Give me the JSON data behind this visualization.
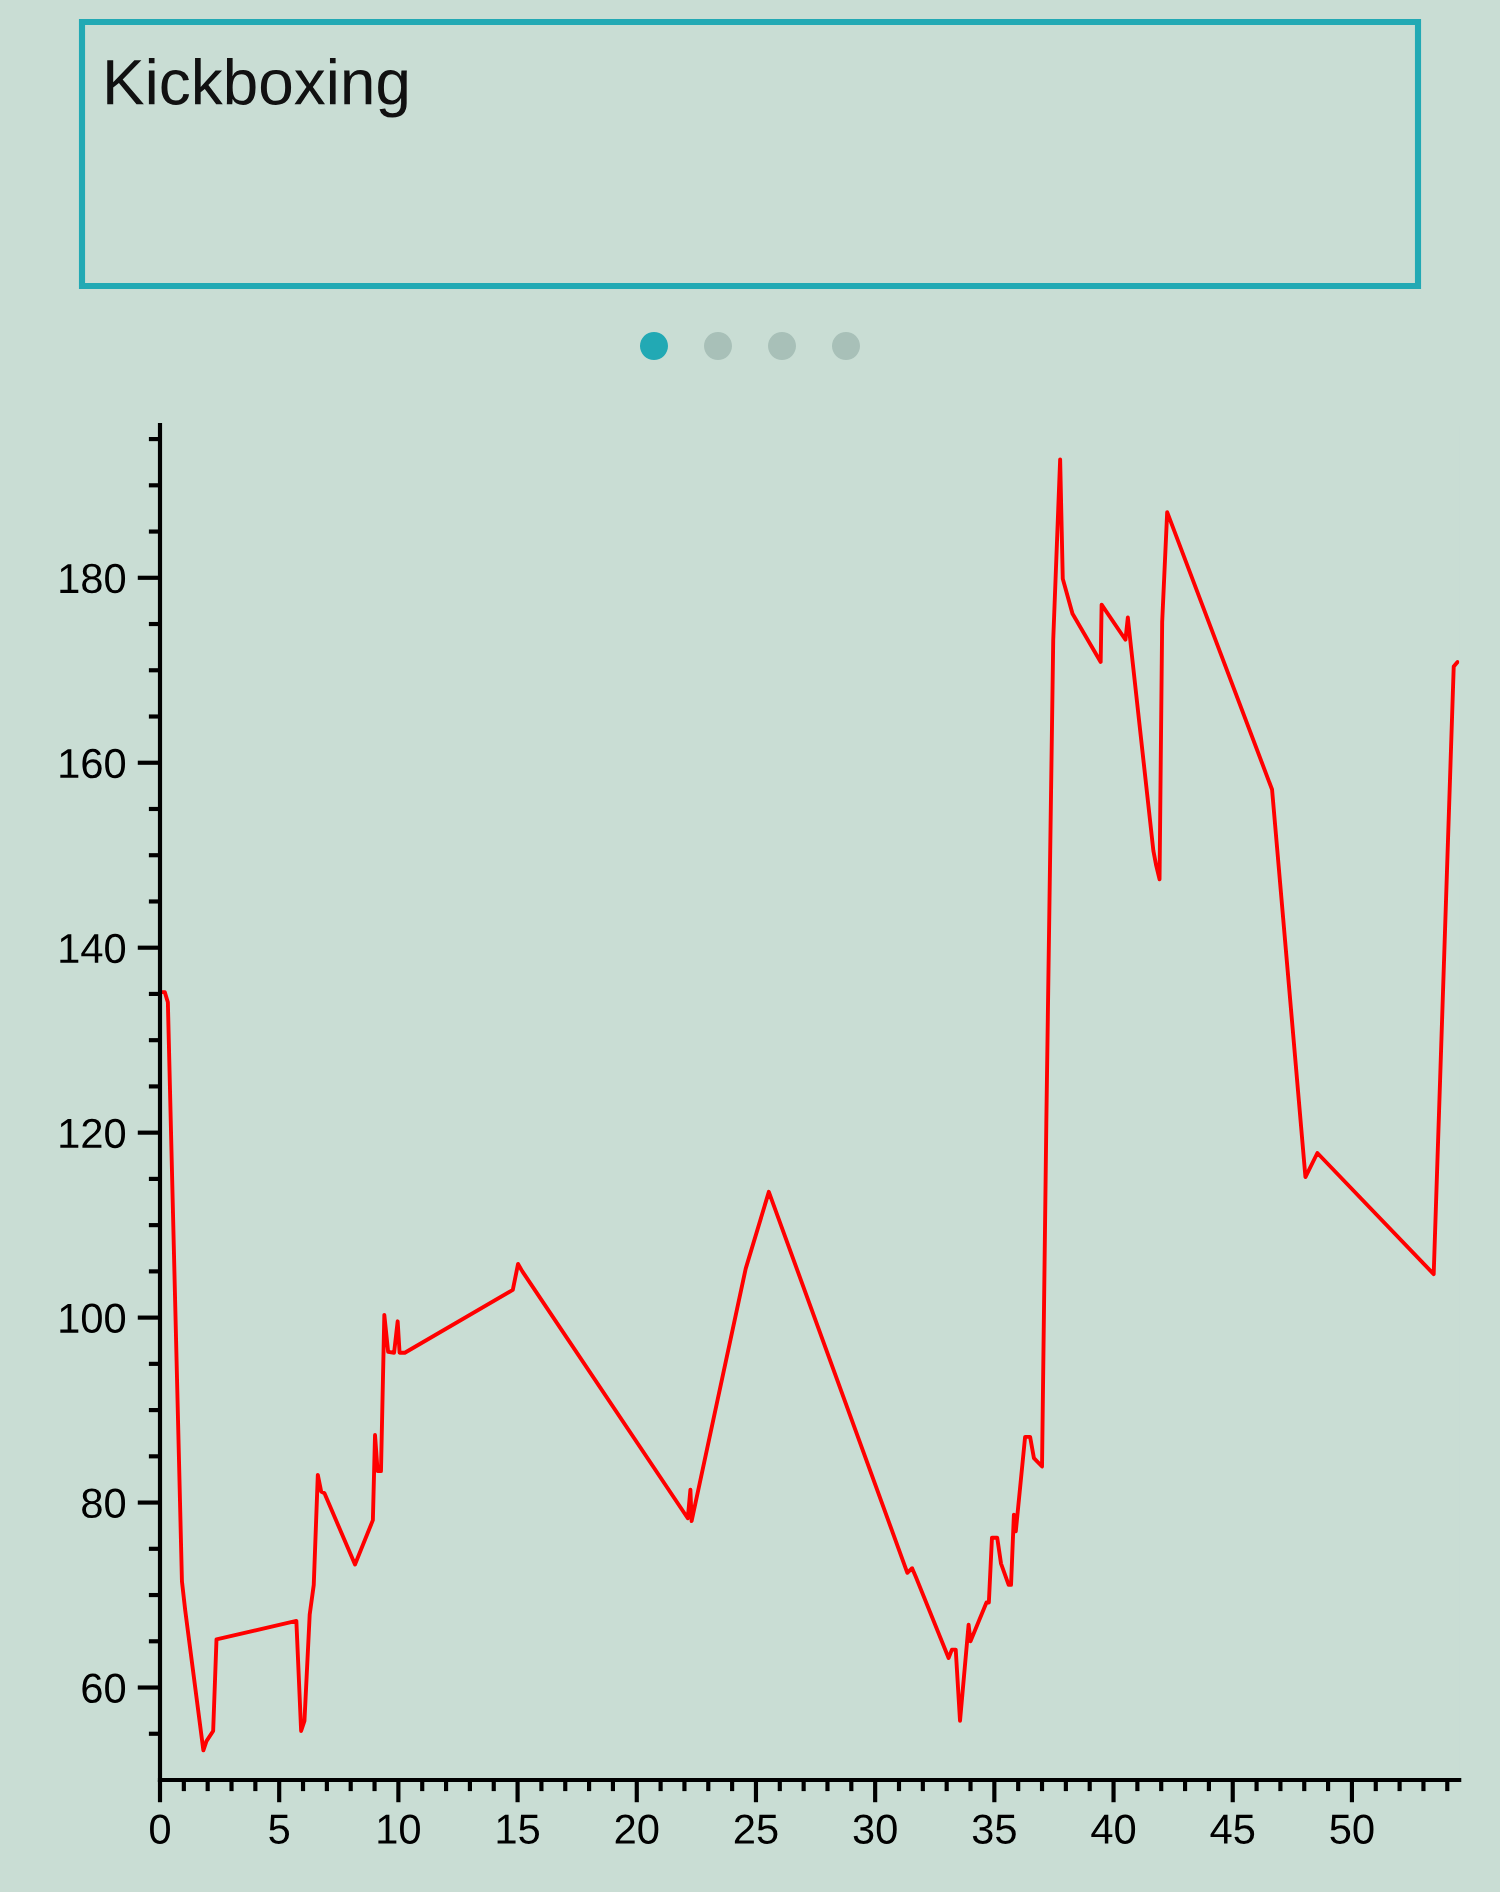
{
  "chart_data": {
    "type": "line",
    "title": "Kickboxing",
    "color": "#ff0000",
    "x": [
      0.05,
      0.2,
      0.33,
      0.92,
      1.06,
      1.82,
      1.95,
      2.23,
      2.37,
      5.72,
      5.92,
      6.06,
      6.28,
      6.45,
      6.62,
      6.76,
      6.9,
      8.18,
      8.93,
      9.02,
      9.13,
      9.27,
      9.41,
      9.57,
      9.82,
      9.97,
      10.05,
      10.27,
      14.8,
      15.02,
      15.2,
      22.14,
      22.25,
      22.3,
      24.57,
      25.54,
      31.35,
      31.55,
      31.7,
      33.08,
      33.22,
      33.38,
      33.56,
      33.92,
      34.0,
      34.67,
      34.77,
      34.9,
      35.12,
      35.28,
      35.6,
      35.7,
      35.82,
      35.9,
      36.29,
      36.5,
      36.66,
      37.0,
      37.18,
      37.47,
      37.76,
      37.87,
      38.28,
      39.46,
      39.5,
      40.5,
      40.6,
      40.75,
      41.67,
      41.78,
      41.93,
      42.04,
      42.25,
      46.65,
      48.05,
      48.55,
      53.43,
      54.27,
      54.43
    ],
    "values": [
      135.2,
      135.2,
      134.1,
      71.5,
      68.3,
      53.2,
      54.2,
      55.3,
      65.2,
      67.2,
      55.3,
      56.4,
      67.9,
      71.1,
      83.0,
      81.2,
      81.0,
      73.3,
      78.1,
      87.3,
      83.4,
      83.4,
      100.3,
      96.3,
      96.2,
      99.6,
      96.2,
      96.2,
      103.0,
      105.8,
      105.0,
      78.3,
      81.4,
      78.0,
      105.3,
      113.6,
      72.4,
      72.9,
      72.0,
      63.2,
      64.1,
      64.1,
      56.4,
      66.8,
      65.0,
      69.2,
      69.2,
      76.2,
      76.2,
      73.4,
      71.1,
      71.1,
      78.7,
      76.9,
      87.1,
      87.1,
      84.8,
      83.9,
      121.0,
      173.3,
      192.8,
      179.9,
      176.1,
      170.9,
      177.1,
      173.3,
      175.7,
      172.1,
      150.5,
      149.0,
      147.4,
      175.2,
      187.1,
      157.1,
      115.2,
      117.8,
      104.7,
      170.4,
      170.9
    ],
    "xlim": [
      0,
      54.5
    ],
    "ylim": [
      50,
      196.5
    ],
    "xticks": [
      0,
      {
        "value": 1,
        "label": null
      },
      {
        "value": 2,
        "label": null
      },
      {
        "value": 3,
        "label": null
      },
      {
        "value": 4,
        "label": null
      },
      5,
      {
        "value": 6,
        "label": null
      },
      {
        "value": 7,
        "label": null
      },
      {
        "value": 8,
        "label": null
      },
      {
        "value": 9,
        "label": null
      },
      10,
      {
        "value": 11,
        "label": null
      },
      {
        "value": 12,
        "label": null
      },
      {
        "value": 13,
        "label": null
      },
      {
        "value": 14,
        "label": null
      },
      15,
      {
        "value": 16,
        "label": null
      },
      {
        "value": 17,
        "label": null
      },
      {
        "value": 18,
        "label": null
      },
      {
        "value": 19,
        "label": null
      },
      20,
      {
        "value": 21,
        "label": null
      },
      {
        "value": 22,
        "label": null
      },
      {
        "value": 23,
        "label": null
      },
      {
        "value": 24,
        "label": null
      },
      25,
      {
        "value": 26,
        "label": null
      },
      {
        "value": 27,
        "label": null
      },
      {
        "value": 28,
        "label": null
      },
      {
        "value": 29,
        "label": null
      },
      30,
      {
        "value": 31,
        "label": null
      },
      {
        "value": 32,
        "label": null
      },
      {
        "value": 33,
        "label": null
      },
      {
        "value": 34,
        "label": null
      },
      35,
      {
        "value": 36,
        "label": null
      },
      {
        "value": 37,
        "label": null
      },
      {
        "value": 38,
        "label": null
      },
      {
        "value": 39,
        "label": null
      },
      40,
      {
        "value": 41,
        "label": null
      },
      {
        "value": 42,
        "label": null
      },
      {
        "value": 43,
        "label": null
      },
      {
        "value": 44,
        "label": null
      },
      45,
      {
        "value": 46,
        "label": null
      },
      {
        "value": 47,
        "label": null
      },
      {
        "value": 48,
        "label": null
      },
      {
        "value": 49,
        "label": null
      },
      50,
      {
        "value": 51,
        "label": null
      },
      {
        "value": 52,
        "label": null
      },
      {
        "value": 53,
        "label": null
      },
      {
        "value": 54,
        "label": null
      }
    ],
    "yticks": [
      {
        "value": 55,
        "label": null
      },
      60,
      {
        "value": 65,
        "label": null
      },
      {
        "value": 70,
        "label": null
      },
      {
        "value": 75,
        "label": null
      },
      80,
      {
        "value": 85,
        "label": null
      },
      {
        "value": 90,
        "label": null
      },
      {
        "value": 95,
        "label": null
      },
      100,
      {
        "value": 105,
        "label": null
      },
      {
        "value": 110,
        "label": null
      },
      {
        "value": 115,
        "label": null
      },
      120,
      {
        "value": 125,
        "label": null
      },
      {
        "value": 130,
        "label": null
      },
      {
        "value": 135,
        "label": null
      },
      140,
      {
        "value": 145,
        "label": null
      },
      {
        "value": 150,
        "label": null
      },
      {
        "value": 155,
        "label": null
      },
      160,
      {
        "value": 165,
        "label": null
      },
      {
        "value": 170,
        "label": null
      },
      {
        "value": 175,
        "label": null
      },
      180,
      {
        "value": 185,
        "label": null
      },
      {
        "value": 190,
        "label": null
      },
      {
        "value": 195,
        "label": null
      }
    ]
  }
}
